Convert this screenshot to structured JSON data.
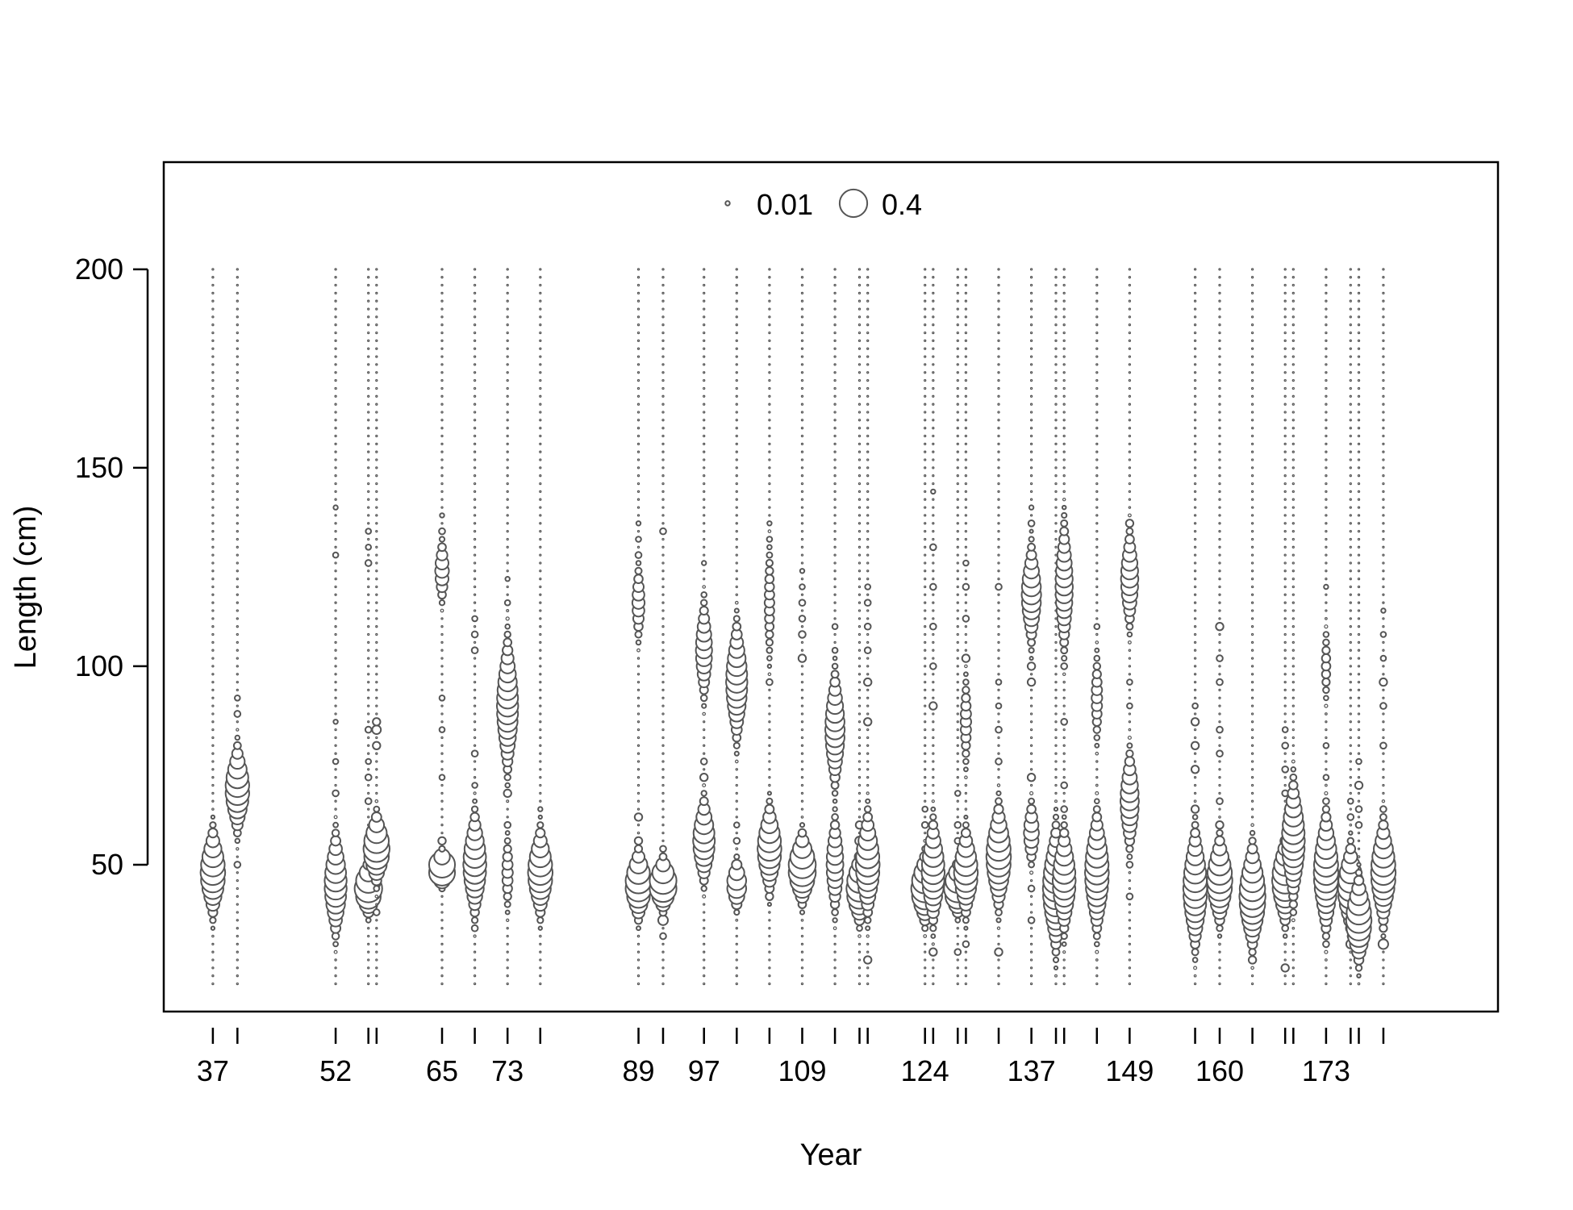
{
  "chart_data": {
    "type": "scatter",
    "subtype": "bubble",
    "xlabel": "Year",
    "ylabel": "Length (cm)",
    "xlim": [
      31,
      194
    ],
    "ylim": [
      13,
      227
    ],
    "y_ticks": [
      50,
      100,
      150,
      200
    ],
    "x_tick_labels": [
      37,
      52,
      65,
      73,
      89,
      97,
      109,
      124,
      137,
      149,
      160,
      173
    ],
    "years": [
      37,
      40,
      52,
      56,
      57,
      65,
      69,
      73,
      77,
      89,
      92,
      97,
      101,
      105,
      109,
      113,
      116,
      117,
      124,
      125,
      128,
      129,
      133,
      137,
      140,
      141,
      145,
      149,
      157,
      160,
      164,
      168,
      169,
      173,
      176,
      177,
      180
    ],
    "length_bins": {
      "min": 20,
      "max": 200,
      "step": 2
    },
    "legend": {
      "placement": "top-center",
      "sizes": [
        0.01,
        0.4
      ],
      "labels": [
        "0.01",
        "0.4"
      ]
    },
    "grid": false,
    "colors": {
      "bubble_stroke": "#555555",
      "bubble_fill": "#ffffff",
      "frame": "#000000"
    },
    "samples": [
      {
        "year": 37,
        "peaks": [
          [
            48,
            0.32,
            5
          ]
        ],
        "scattered": []
      },
      {
        "year": 40,
        "peaks": [
          [
            69,
            0.3,
            5
          ]
        ],
        "scattered": [
          [
            50,
            0.02
          ],
          [
            88,
            0.02
          ],
          [
            92,
            0.015
          ]
        ]
      },
      {
        "year": 52,
        "peaks": [
          [
            45,
            0.26,
            6
          ]
        ],
        "scattered": [
          [
            68,
            0.02
          ],
          [
            76,
            0.015
          ],
          [
            86,
            0.01
          ],
          [
            125,
            0.02
          ],
          [
            128,
            0.015
          ],
          [
            140,
            0.01
          ]
        ]
      },
      {
        "year": 56,
        "peaks": [
          [
            44,
            0.4,
            3
          ]
        ],
        "scattered": [
          [
            66,
            0.02
          ],
          [
            72,
            0.02
          ],
          [
            76,
            0.015
          ],
          [
            84,
            0.02
          ],
          [
            126,
            0.02
          ],
          [
            130,
            0.015
          ],
          [
            134,
            0.015
          ]
        ]
      },
      {
        "year": 57,
        "peaks": [
          [
            54,
            0.36,
            4
          ]
        ],
        "scattered": [
          [
            38,
            0.02
          ],
          [
            80,
            0.03
          ],
          [
            84,
            0.04
          ],
          [
            86,
            0.03
          ]
        ]
      },
      {
        "year": 65,
        "peaks": [
          [
            49,
            0.4,
            2
          ],
          [
            124,
            0.1,
            4
          ]
        ],
        "scattered": [
          [
            56,
            0.03
          ],
          [
            72,
            0.015
          ],
          [
            84,
            0.015
          ],
          [
            92,
            0.015
          ],
          [
            134,
            0.02
          ],
          [
            138,
            0.01
          ]
        ]
      },
      {
        "year": 69,
        "peaks": [
          [
            50,
            0.28,
            6
          ]
        ],
        "scattered": [
          [
            34,
            0.02
          ],
          [
            70,
            0.015
          ],
          [
            78,
            0.02
          ],
          [
            104,
            0.02
          ],
          [
            108,
            0.02
          ],
          [
            112,
            0.015
          ]
        ]
      },
      {
        "year": 73,
        "peaks": [
          [
            90,
            0.24,
            8
          ],
          [
            48,
            0.06,
            5
          ]
        ],
        "scattered": [
          [
            60,
            0.02
          ],
          [
            68,
            0.03
          ],
          [
            108,
            0.015
          ],
          [
            116,
            0.015
          ],
          [
            122,
            0.01
          ]
        ]
      },
      {
        "year": 77,
        "peaks": [
          [
            48,
            0.32,
            5
          ]
        ],
        "scattered": [
          [
            40,
            0.02
          ],
          [
            60,
            0.015
          ],
          [
            64,
            0.01
          ]
        ]
      },
      {
        "year": 89,
        "peaks": [
          [
            45,
            0.36,
            4
          ],
          [
            116,
            0.08,
            5
          ]
        ],
        "scattered": [
          [
            56,
            0.03
          ],
          [
            62,
            0.03
          ],
          [
            108,
            0.02
          ],
          [
            128,
            0.02
          ],
          [
            132,
            0.015
          ],
          [
            136,
            0.01
          ]
        ]
      },
      {
        "year": 92,
        "peaks": [
          [
            45,
            0.4,
            3
          ]
        ],
        "scattered": [
          [
            36,
            0.05
          ],
          [
            32,
            0.02
          ],
          [
            54,
            0.02
          ],
          [
            134,
            0.02
          ]
        ]
      },
      {
        "year": 97,
        "peaks": [
          [
            56,
            0.25,
            5
          ],
          [
            104,
            0.14,
            6
          ]
        ],
        "scattered": [
          [
            72,
            0.03
          ],
          [
            76,
            0.02
          ],
          [
            92,
            0.02
          ],
          [
            114,
            0.02
          ],
          [
            118,
            0.015
          ],
          [
            126,
            0.01
          ]
        ]
      },
      {
        "year": 101,
        "peaks": [
          [
            96,
            0.24,
            7
          ],
          [
            45,
            0.2,
            3
          ]
        ],
        "scattered": [
          [
            110,
            0.03
          ],
          [
            113,
            0.02
          ],
          [
            56,
            0.02
          ],
          [
            60,
            0.015
          ]
        ]
      },
      {
        "year": 105,
        "peaks": [
          [
            54,
            0.3,
            5
          ],
          [
            116,
            0.05,
            8
          ]
        ],
        "scattered": [
          [
            42,
            0.03
          ],
          [
            96,
            0.02
          ],
          [
            132,
            0.015
          ],
          [
            136,
            0.01
          ]
        ]
      },
      {
        "year": 109,
        "peaks": [
          [
            49,
            0.4,
            4
          ]
        ],
        "scattered": [
          [
            102,
            0.03
          ],
          [
            108,
            0.025
          ],
          [
            112,
            0.02
          ],
          [
            116,
            0.02
          ],
          [
            120,
            0.015
          ],
          [
            124,
            0.01
          ]
        ]
      },
      {
        "year": 113,
        "peaks": [
          [
            84,
            0.2,
            7
          ],
          [
            50,
            0.15,
            6
          ]
        ],
        "scattered": [
          [
            104,
            0.015
          ],
          [
            110,
            0.015
          ],
          [
            38,
            0.02
          ]
        ]
      },
      {
        "year": 116,
        "peaks": [
          [
            44,
            0.36,
            4
          ]
        ],
        "scattered": [
          [
            56,
            0.04
          ],
          [
            60,
            0.03
          ]
        ]
      },
      {
        "year": 117,
        "peaks": [
          [
            50,
            0.3,
            6
          ]
        ],
        "scattered": [
          [
            26,
            0.03
          ],
          [
            86,
            0.03
          ],
          [
            96,
            0.03
          ],
          [
            104,
            0.02
          ],
          [
            110,
            0.02
          ],
          [
            116,
            0.02
          ],
          [
            120,
            0.015
          ]
        ]
      },
      {
        "year": 124,
        "peaks": [
          [
            44,
            0.4,
            4
          ]
        ],
        "scattered": [
          [
            60,
            0.02
          ],
          [
            64,
            0.015
          ]
        ]
      },
      {
        "year": 125,
        "peaks": [
          [
            48,
            0.28,
            6
          ]
        ],
        "scattered": [
          [
            28,
            0.03
          ],
          [
            36,
            0.02
          ],
          [
            90,
            0.03
          ],
          [
            100,
            0.02
          ],
          [
            110,
            0.02
          ],
          [
            120,
            0.02
          ],
          [
            130,
            0.02
          ],
          [
            144,
            0.01
          ]
        ]
      },
      {
        "year": 128,
        "peaks": [
          [
            44,
            0.4,
            3
          ]
        ],
        "scattered": [
          [
            28,
            0.02
          ],
          [
            56,
            0.02
          ],
          [
            60,
            0.02
          ],
          [
            68,
            0.015
          ]
        ]
      },
      {
        "year": 129,
        "peaks": [
          [
            48,
            0.3,
            5
          ],
          [
            86,
            0.06,
            6
          ]
        ],
        "scattered": [
          [
            30,
            0.02
          ],
          [
            102,
            0.03
          ],
          [
            112,
            0.02
          ],
          [
            120,
            0.02
          ],
          [
            126,
            0.015
          ]
        ]
      },
      {
        "year": 133,
        "peaks": [
          [
            52,
            0.32,
            6
          ]
        ],
        "scattered": [
          [
            28,
            0.03
          ],
          [
            76,
            0.02
          ],
          [
            84,
            0.02
          ],
          [
            90,
            0.015
          ],
          [
            96,
            0.015
          ],
          [
            120,
            0.02
          ]
        ]
      },
      {
        "year": 137,
        "peaks": [
          [
            118,
            0.2,
            6
          ],
          [
            58,
            0.12,
            4
          ]
        ],
        "scattered": [
          [
            36,
            0.02
          ],
          [
            44,
            0.02
          ],
          [
            72,
            0.03
          ],
          [
            96,
            0.03
          ],
          [
            100,
            0.03
          ],
          [
            108,
            0.02
          ],
          [
            136,
            0.02
          ],
          [
            140,
            0.01
          ]
        ]
      },
      {
        "year": 140,
        "peaks": [
          [
            44,
            0.36,
            7
          ]
        ],
        "scattered": [
          [
            30,
            0.02
          ],
          [
            50,
            0.03
          ]
        ]
      },
      {
        "year": 141,
        "peaks": [
          [
            46,
            0.28,
            6
          ],
          [
            120,
            0.16,
            8
          ]
        ],
        "scattered": [
          [
            34,
            0.03
          ],
          [
            64,
            0.02
          ],
          [
            70,
            0.02
          ],
          [
            86,
            0.02
          ],
          [
            100,
            0.02
          ],
          [
            106,
            0.03
          ]
        ]
      },
      {
        "year": 145,
        "peaks": [
          [
            48,
            0.3,
            7
          ],
          [
            92,
            0.06,
            6
          ]
        ],
        "scattered": [
          [
            34,
            0.02
          ],
          [
            60,
            0.02
          ],
          [
            64,
            0.015
          ],
          [
            110,
            0.015
          ]
        ]
      },
      {
        "year": 149,
        "peaks": [
          [
            122,
            0.16,
            6
          ],
          [
            66,
            0.18,
            6
          ]
        ],
        "scattered": [
          [
            42,
            0.02
          ],
          [
            50,
            0.02
          ],
          [
            56,
            0.02
          ],
          [
            90,
            0.015
          ],
          [
            96,
            0.015
          ],
          [
            136,
            0.03
          ]
        ]
      },
      {
        "year": 157,
        "peaks": [
          [
            44,
            0.3,
            7
          ]
        ],
        "scattered": [
          [
            32,
            0.02
          ],
          [
            64,
            0.03
          ],
          [
            74,
            0.03
          ],
          [
            80,
            0.03
          ],
          [
            86,
            0.03
          ],
          [
            90,
            0.015
          ]
        ]
      },
      {
        "year": 160,
        "peaks": [
          [
            46,
            0.34,
            5
          ]
        ],
        "scattered": [
          [
            36,
            0.02
          ],
          [
            60,
            0.03
          ],
          [
            66,
            0.02
          ],
          [
            78,
            0.02
          ],
          [
            84,
            0.02
          ],
          [
            96,
            0.02
          ],
          [
            102,
            0.02
          ],
          [
            110,
            0.03
          ]
        ]
      },
      {
        "year": 164,
        "peaks": [
          [
            42,
            0.36,
            6
          ]
        ],
        "scattered": [
          [
            26,
            0.03
          ],
          [
            28,
            0.02
          ],
          [
            54,
            0.02
          ]
        ]
      },
      {
        "year": 168,
        "peaks": [
          [
            46,
            0.36,
            5
          ]
        ],
        "scattered": [
          [
            24,
            0.03
          ],
          [
            68,
            0.02
          ],
          [
            74,
            0.02
          ],
          [
            80,
            0.02
          ],
          [
            84,
            0.015
          ]
        ]
      },
      {
        "year": 169,
        "peaks": [
          [
            56,
            0.28,
            7
          ]
        ],
        "scattered": [
          [
            38,
            0.02
          ],
          [
            40,
            0.03
          ]
        ]
      },
      {
        "year": 173,
        "peaks": [
          [
            48,
            0.32,
            7
          ],
          [
            100,
            0.04,
            5
          ]
        ],
        "scattered": [
          [
            30,
            0.02
          ],
          [
            66,
            0.02
          ],
          [
            72,
            0.015
          ],
          [
            80,
            0.015
          ],
          [
            108,
            0.015
          ],
          [
            120,
            0.01
          ]
        ]
      },
      {
        "year": 176,
        "peaks": [
          [
            44,
            0.34,
            5
          ]
        ],
        "scattered": [
          [
            30,
            0.04
          ],
          [
            62,
            0.02
          ],
          [
            66,
            0.015
          ]
        ]
      },
      {
        "year": 177,
        "peaks": [
          [
            36,
            0.34,
            5
          ]
        ],
        "scattered": [
          [
            26,
            0.03
          ],
          [
            28,
            0.03
          ],
          [
            60,
            0.02
          ],
          [
            64,
            0.02
          ],
          [
            70,
            0.03
          ],
          [
            76,
            0.015
          ]
        ]
      },
      {
        "year": 180,
        "peaks": [
          [
            48,
            0.32,
            6
          ]
        ],
        "scattered": [
          [
            30,
            0.05
          ],
          [
            34,
            0.03
          ],
          [
            38,
            0.03
          ],
          [
            64,
            0.02
          ],
          [
            80,
            0.02
          ],
          [
            90,
            0.02
          ],
          [
            96,
            0.03
          ],
          [
            102,
            0.015
          ],
          [
            108,
            0.015
          ],
          [
            114,
            0.01
          ]
        ]
      }
    ]
  }
}
